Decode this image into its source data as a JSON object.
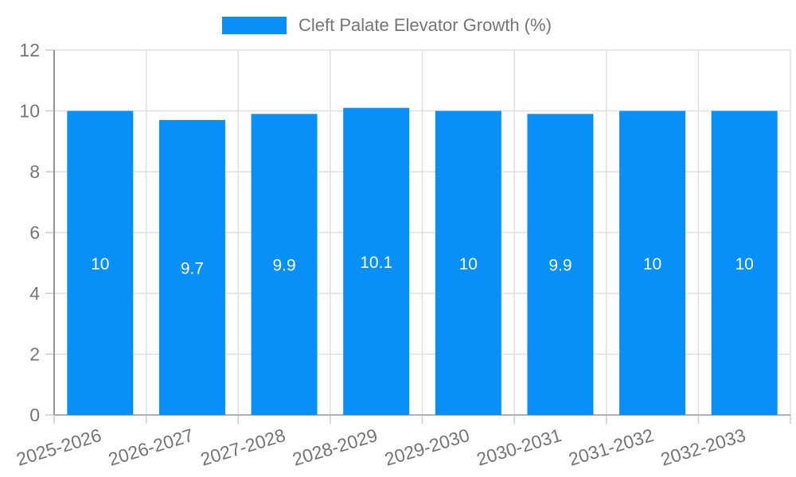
{
  "legend": {
    "label": "Cleft Palate Elevator Growth (%)"
  },
  "chart_data": {
    "type": "bar",
    "title": "Cleft Palate Elevator Growth (%)",
    "categories": [
      "2025-2026",
      "2026-2027",
      "2027-2028",
      "2028-2029",
      "2029-2030",
      "2030-2031",
      "2031-2032",
      "2032-2033"
    ],
    "values": [
      10,
      9.7,
      9.9,
      10.1,
      10,
      9.9,
      10,
      10
    ],
    "value_labels": [
      "10",
      "9.7",
      "9.9",
      "10.1",
      "10",
      "9.9",
      "10",
      "10"
    ],
    "xlabel": "",
    "ylabel": "",
    "ylim": [
      0,
      12
    ],
    "yticks": [
      0,
      2,
      4,
      6,
      8,
      10,
      12
    ],
    "grid": true,
    "legend_position": "top",
    "x_label_rotation": -17,
    "colors": {
      "bar": "#0890f8",
      "gridline": "#e0e0e0",
      "tick": "#cccccc",
      "axis_left": "#949494",
      "axis_bottom": "#b0b0b0",
      "axis_text": "#757575",
      "value_label": "#ffffff"
    }
  }
}
